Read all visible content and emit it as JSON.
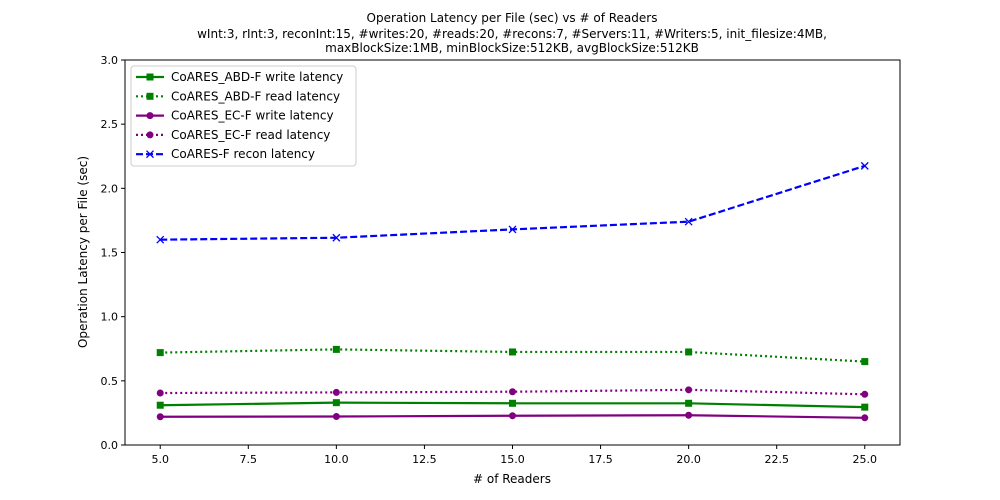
{
  "chart_data": {
    "type": "line",
    "title": "Operation Latency per File (sec) vs # of Readers",
    "subtitle_lines": [
      "wInt:3, rInt:3, reconInt:15, #writes:20, #reads:20, #recons:7, #Servers:11, #Writers:5, init_filesize:4MB,",
      "maxBlockSize:1MB, minBlockSize:512KB, avgBlockSize:512KB"
    ],
    "xlabel": "# of Readers",
    "ylabel": "Operation Latency per File (sec)",
    "xlim": [
      4.0,
      26.0
    ],
    "ylim": [
      0.0,
      3.0
    ],
    "xticks": [
      "5.0",
      "7.5",
      "10.0",
      "12.5",
      "15.0",
      "17.5",
      "20.0",
      "22.5",
      "25.0"
    ],
    "yticks": [
      "0.0",
      "0.5",
      "1.0",
      "1.5",
      "2.0",
      "2.5",
      "3.0"
    ],
    "x": [
      5,
      10,
      15,
      20,
      25
    ],
    "grid": false,
    "legend_position": "top-left",
    "series": [
      {
        "name": "CoARES_ABD-F write latency",
        "values": [
          0.31,
          0.33,
          0.325,
          0.325,
          0.295
        ],
        "color": "#008000",
        "dash": "solid",
        "marker": "square"
      },
      {
        "name": "CoARES_ABD-F read latency",
        "values": [
          0.72,
          0.745,
          0.725,
          0.725,
          0.65
        ],
        "color": "#008000",
        "dash": "dotted",
        "marker": "square"
      },
      {
        "name": "CoARES_EC-F write latency",
        "values": [
          0.22,
          0.222,
          0.228,
          0.232,
          0.212
        ],
        "color": "#800080",
        "dash": "solid",
        "marker": "circle"
      },
      {
        "name": "CoARES_EC-F read latency",
        "values": [
          0.405,
          0.41,
          0.415,
          0.43,
          0.395
        ],
        "color": "#800080",
        "dash": "dotted",
        "marker": "circle"
      },
      {
        "name": "CoARES-F recon latency",
        "values": [
          1.6,
          1.615,
          1.68,
          1.74,
          2.175
        ],
        "color": "#0000ff",
        "dash": "dashed",
        "marker": "x"
      }
    ]
  }
}
